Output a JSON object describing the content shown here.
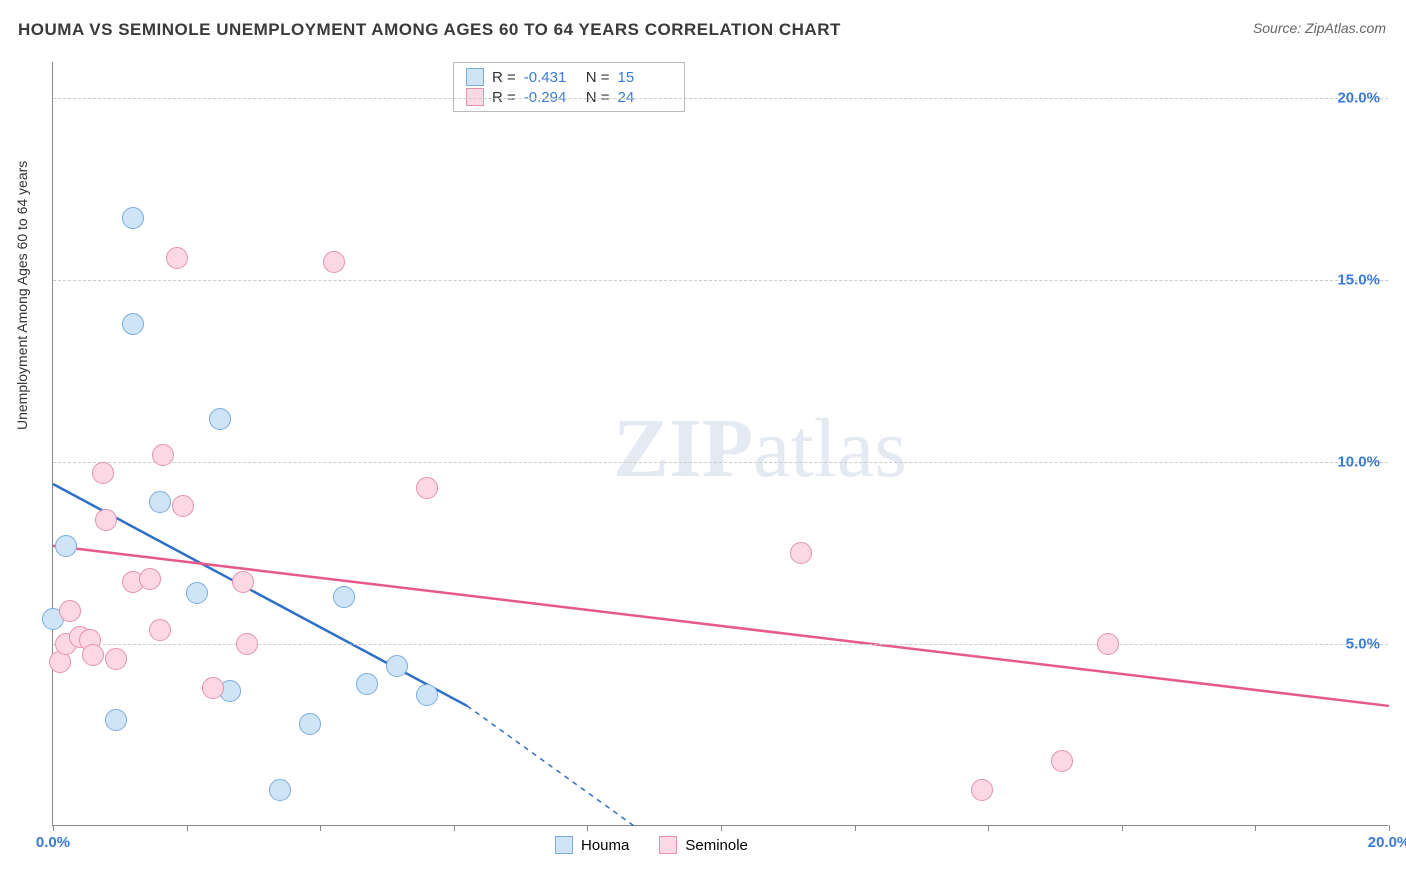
{
  "title": "HOUMA VS SEMINOLE UNEMPLOYMENT AMONG AGES 60 TO 64 YEARS CORRELATION CHART",
  "source": "Source: ZipAtlas.com",
  "y_axis_title": "Unemployment Among Ages 60 to 64 years",
  "watermark_a": "ZIP",
  "watermark_b": "atlas",
  "chart": {
    "type": "scatter",
    "xlim": [
      0,
      20
    ],
    "ylim": [
      0,
      21
    ],
    "x_ticks": [
      0,
      2,
      4,
      6,
      8,
      10,
      12,
      14,
      16,
      18,
      20
    ],
    "x_tick_labels": {
      "0": "0.0%",
      "20": "20.0%"
    },
    "y_grid": [
      5,
      10,
      15,
      20
    ],
    "y_tick_labels": {
      "5": "5.0%",
      "10": "10.0%",
      "15": "15.0%",
      "20": "20.0%"
    },
    "point_radius": 11,
    "point_border_width": 1.5,
    "background_color": "#ffffff",
    "grid_color": "#cccccc",
    "axis_color": "#888888",
    "tick_label_color": "#3a7bd5"
  },
  "series": [
    {
      "name": "Houma",
      "fill": "#cfe4f7",
      "stroke": "#7aacdd",
      "line_color": "#2e6fc7",
      "R_label": "R = ",
      "R": "-0.431",
      "N_label": "N = ",
      "N": "15",
      "regression": {
        "x1": 0,
        "y1": 9.4,
        "x2": 6.2,
        "y2": 3.3,
        "dash_to_x": 8.7,
        "dash_to_y": 0.0
      },
      "points": [
        [
          0.0,
          5.7
        ],
        [
          0.2,
          7.7
        ],
        [
          0.95,
          2.9
        ],
        [
          1.2,
          16.7
        ],
        [
          1.2,
          13.8
        ],
        [
          1.6,
          8.9
        ],
        [
          2.15,
          6.4
        ],
        [
          2.5,
          11.2
        ],
        [
          2.65,
          3.7
        ],
        [
          3.4,
          1.0
        ],
        [
          3.85,
          2.8
        ],
        [
          4.35,
          6.3
        ],
        [
          4.7,
          3.9
        ],
        [
          5.15,
          4.4
        ],
        [
          5.6,
          3.6
        ]
      ]
    },
    {
      "name": "Seminole",
      "fill": "#fbd8e4",
      "stroke": "#e692af",
      "line_color": "#e65a8a",
      "R_label": "R = ",
      "R": "-0.294",
      "N_label": "N = ",
      "N": "24",
      "regression": {
        "x1": 0,
        "y1": 7.7,
        "x2": 20,
        "y2": 3.3
      },
      "points": [
        [
          0.1,
          4.5
        ],
        [
          0.2,
          5.0
        ],
        [
          0.25,
          5.9
        ],
        [
          0.4,
          5.2
        ],
        [
          0.55,
          5.1
        ],
        [
          0.6,
          4.7
        ],
        [
          0.75,
          9.7
        ],
        [
          0.8,
          8.4
        ],
        [
          0.95,
          4.6
        ],
        [
          1.2,
          6.7
        ],
        [
          1.45,
          6.8
        ],
        [
          1.6,
          5.4
        ],
        [
          1.65,
          10.2
        ],
        [
          1.85,
          15.6
        ],
        [
          1.95,
          8.8
        ],
        [
          2.4,
          3.8
        ],
        [
          2.85,
          6.7
        ],
        [
          2.9,
          5.0
        ],
        [
          4.2,
          15.5
        ],
        [
          5.6,
          9.3
        ],
        [
          11.2,
          7.5
        ],
        [
          13.9,
          1.0
        ],
        [
          15.1,
          1.8
        ],
        [
          15.8,
          5.0
        ]
      ]
    }
  ],
  "bottom_legend": [
    {
      "label": "Houma",
      "fill": "#cfe4f7",
      "stroke": "#7aacdd"
    },
    {
      "label": "Seminole",
      "fill": "#fbd8e4",
      "stroke": "#e692af"
    }
  ]
}
